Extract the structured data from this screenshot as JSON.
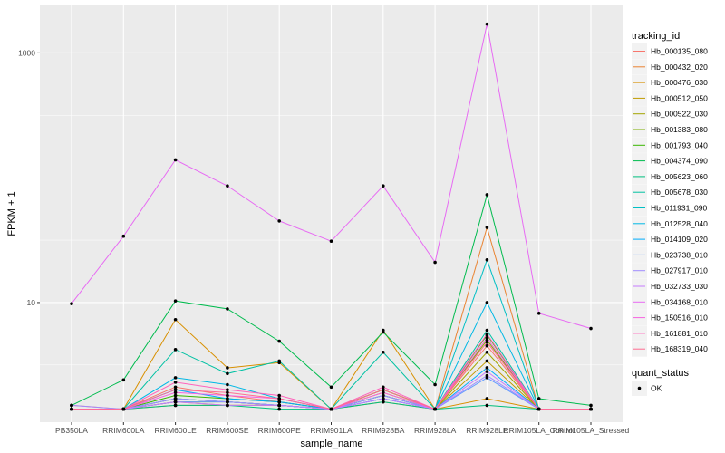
{
  "chart_data": {
    "type": "line",
    "xlabel": "sample_name",
    "ylabel": "FPKM + 1",
    "yscale": "log10",
    "ylim": [
      1.1,
      2400
    ],
    "y_ticks": [
      10,
      1000
    ],
    "y_tick_labels": [
      "10",
      "1000"
    ],
    "grid": true,
    "legend_placement": "right",
    "categories": [
      "PB350LA",
      "RRIM600LA",
      "RRIM600LE",
      "RRIM600SE",
      "RRIM600PE",
      "RRIM901LA",
      "RRIM928BA",
      "RRIM928LA",
      "RRIM928LE",
      "RRIM105LA_Control",
      "RRIM105LA_Stressed"
    ],
    "color_legend_title": "tracking_id",
    "series": [
      {
        "name": "Hb_000135_080",
        "color": "#F8766D",
        "values": [
          1.5,
          1.4,
          2.1,
          1.8,
          1.6,
          1.4,
          1.8,
          1.4,
          4.5,
          1.4,
          1.4
        ]
      },
      {
        "name": "Hb_000432_020",
        "color": "#EA8331",
        "values": [
          1.4,
          1.4,
          1.5,
          1.5,
          1.5,
          1.4,
          1.6,
          1.4,
          40,
          1.4,
          1.4
        ]
      },
      {
        "name": "Hb_000476_030",
        "color": "#D89000",
        "values": [
          1.4,
          1.4,
          7.3,
          3.0,
          3.3,
          1.4,
          6.0,
          1.4,
          1.7,
          1.4,
          1.4
        ]
      },
      {
        "name": "Hb_000512_050",
        "color": "#C09B00",
        "values": [
          1.4,
          1.4,
          1.6,
          1.5,
          1.5,
          1.4,
          1.9,
          1.4,
          3.4,
          1.4,
          1.4
        ]
      },
      {
        "name": "Hb_000522_030",
        "color": "#A3A500",
        "values": [
          1.4,
          1.4,
          1.6,
          1.6,
          1.5,
          1.4,
          2.0,
          1.4,
          4.0,
          1.4,
          1.4
        ]
      },
      {
        "name": "Hb_001383_080",
        "color": "#7CAE00",
        "values": [
          1.4,
          1.4,
          1.7,
          1.6,
          1.5,
          1.4,
          1.8,
          1.4,
          5.0,
          1.4,
          1.4
        ]
      },
      {
        "name": "Hb_001793_040",
        "color": "#39B600",
        "values": [
          1.4,
          1.4,
          1.8,
          1.7,
          1.6,
          1.4,
          2.0,
          1.4,
          5.5,
          1.4,
          1.4
        ]
      },
      {
        "name": "Hb_004374_090",
        "color": "#00BB4E",
        "values": [
          1.5,
          2.4,
          10.3,
          8.9,
          4.9,
          2.1,
          5.8,
          2.2,
          73,
          1.7,
          1.5
        ]
      },
      {
        "name": "Hb_005623_060",
        "color": "#00BF7D",
        "values": [
          1.4,
          1.4,
          1.5,
          1.5,
          1.4,
          1.4,
          1.6,
          1.4,
          1.5,
          1.4,
          1.4
        ]
      },
      {
        "name": "Hb_005678_030",
        "color": "#00C1A3",
        "values": [
          1.4,
          1.4,
          4.2,
          2.7,
          3.4,
          1.4,
          4.0,
          1.4,
          6.0,
          1.4,
          1.4
        ]
      },
      {
        "name": "Hb_011931_090",
        "color": "#00BFC4",
        "values": [
          1.4,
          1.4,
          1.7,
          1.6,
          1.5,
          1.4,
          1.7,
          1.4,
          22,
          1.4,
          1.4
        ]
      },
      {
        "name": "Hb_012528_040",
        "color": "#00B8E5",
        "values": [
          1.4,
          1.4,
          2.5,
          2.2,
          1.7,
          1.4,
          1.8,
          1.4,
          10,
          1.4,
          1.4
        ]
      },
      {
        "name": "Hb_014109_020",
        "color": "#00ACFC",
        "values": [
          1.4,
          1.4,
          2.0,
          1.7,
          1.6,
          1.4,
          1.7,
          1.4,
          3.0,
          1.4,
          1.4
        ]
      },
      {
        "name": "Hb_023738_010",
        "color": "#619CFF",
        "values": [
          1.4,
          1.4,
          1.6,
          1.6,
          1.5,
          1.4,
          1.7,
          1.4,
          2.5,
          1.4,
          1.4
        ]
      },
      {
        "name": "Hb_027917_010",
        "color": "#9F8CFF",
        "values": [
          1.5,
          1.4,
          1.7,
          1.6,
          1.5,
          1.4,
          1.8,
          1.4,
          2.6,
          1.4,
          1.4
        ]
      },
      {
        "name": "Hb_032733_030",
        "color": "#C77CFF",
        "values": [
          1.4,
          1.4,
          1.6,
          1.5,
          1.5,
          1.4,
          1.7,
          1.4,
          2.8,
          1.4,
          1.4
        ]
      },
      {
        "name": "Hb_034168_010",
        "color": "#E76BF3",
        "values": [
          9.8,
          34,
          139,
          86,
          45,
          31,
          86,
          21,
          1700,
          8.2,
          6.2
        ]
      },
      {
        "name": "Hb_150516_010",
        "color": "#F763E0",
        "values": [
          1.4,
          1.4,
          1.9,
          1.8,
          1.7,
          1.4,
          1.9,
          1.4,
          5.2,
          1.4,
          1.4
        ]
      },
      {
        "name": "Hb_161881_010",
        "color": "#FF62BC",
        "values": [
          1.4,
          1.4,
          2.3,
          2.0,
          1.8,
          1.4,
          2.1,
          1.4,
          5.6,
          1.4,
          1.4
        ]
      },
      {
        "name": "Hb_168319_040",
        "color": "#FF6C91",
        "values": [
          1.4,
          1.4,
          2.0,
          1.9,
          1.7,
          1.4,
          2.0,
          1.4,
          4.8,
          1.4,
          1.4
        ]
      }
    ],
    "point_legend_title": "quant_status",
    "point_legend_entries": [
      "OK"
    ],
    "colors": {
      "panel_background": "#EBEBEB",
      "grid_major": "#FFFFFF",
      "point": "#000000"
    }
  }
}
